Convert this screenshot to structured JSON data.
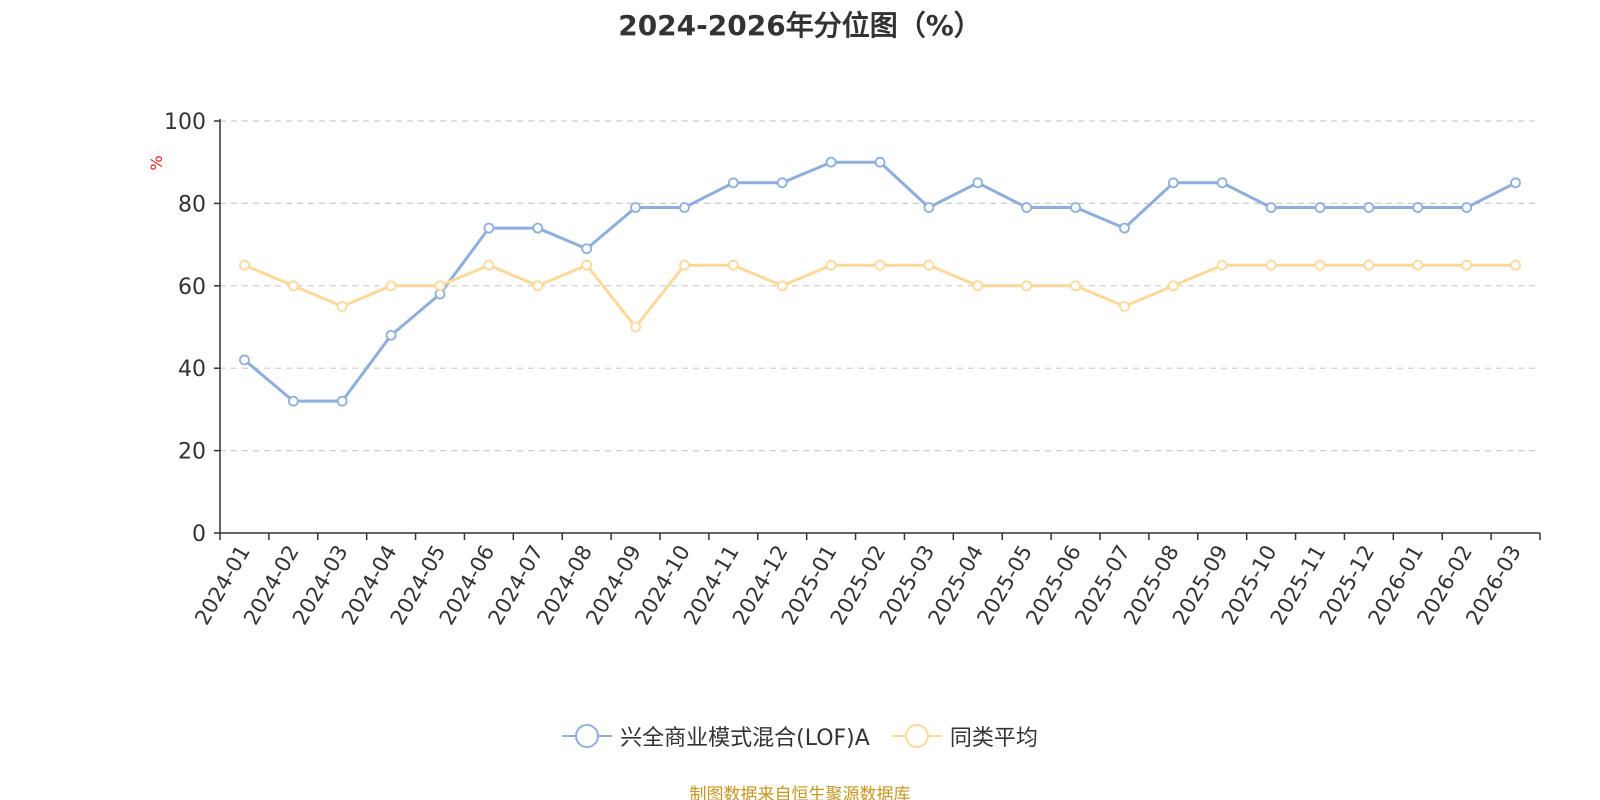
{
  "chart_data": {
    "type": "line",
    "title": "2024-2026年分位图（%）",
    "ylabel": "%",
    "xlabel": "",
    "ylim": [
      0,
      100
    ],
    "yticks": [
      0,
      20,
      40,
      60,
      80,
      100
    ],
    "grid": true,
    "legend_position": "bottom-center",
    "categories": [
      "2024-01",
      "2024-02",
      "2024-03",
      "2024-04",
      "2024-05",
      "2024-06",
      "2024-07",
      "2024-08",
      "2024-09",
      "2024-10",
      "2024-11",
      "2024-12",
      "2025-01",
      "2025-02",
      "2025-03",
      "2025-04",
      "2025-05",
      "2025-06",
      "2025-07",
      "2025-08",
      "2025-09",
      "2025-10",
      "2025-11",
      "2025-12",
      "2026-01",
      "2026-02",
      "2026-03"
    ],
    "series": [
      {
        "name": "兴全商业模式混合(LOF)A",
        "color": "#8eaedb",
        "values": [
          42,
          32,
          32,
          48,
          58,
          74,
          74,
          69,
          79,
          79,
          85,
          85,
          90,
          90,
          79,
          85,
          79,
          79,
          74,
          85,
          85,
          79,
          79,
          79,
          79,
          79,
          85
        ]
      },
      {
        "name": "同类平均",
        "color": "#fcd99a",
        "values": [
          65,
          60,
          55,
          60,
          60,
          65,
          60,
          65,
          50,
          65,
          65,
          60,
          65,
          65,
          65,
          60,
          60,
          60,
          55,
          60,
          65,
          65,
          65,
          65,
          65,
          65,
          65
        ]
      }
    ]
  },
  "colors": {
    "axis": "#333333",
    "grid": "#cccccc",
    "ylabel": "#e02020",
    "source": "#c8961e"
  },
  "source_note": "制图数据来自恒生聚源数据库"
}
